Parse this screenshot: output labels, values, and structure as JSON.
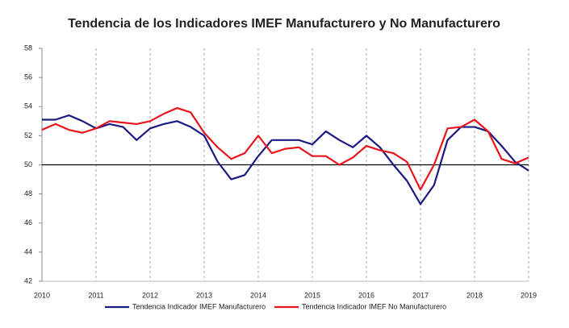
{
  "chart_data": {
    "type": "line",
    "title": "Tendencia de los Indicadores IMEF Manufacturero y No Manufacturero",
    "x": [
      2010,
      2010.25,
      2010.5,
      2010.75,
      2011,
      2011.25,
      2011.5,
      2011.75,
      2012,
      2012.25,
      2012.5,
      2012.75,
      2013,
      2013.25,
      2013.5,
      2013.75,
      2014,
      2014.25,
      2014.5,
      2014.75,
      2015,
      2015.25,
      2015.5,
      2015.75,
      2016,
      2016.25,
      2016.5,
      2016.75,
      2017,
      2017.25,
      2017.5,
      2017.75,
      2018,
      2018.25,
      2018.5,
      2018.75,
      2019
    ],
    "series": [
      {
        "name": "Tendencia Indicador IMEF Manufacturero",
        "color": "#1a1a80",
        "values": [
          53.1,
          53.1,
          53.4,
          53.0,
          52.5,
          52.8,
          52.6,
          51.7,
          52.5,
          52.8,
          53.0,
          52.6,
          52.0,
          50.2,
          49.0,
          49.3,
          50.6,
          51.7,
          51.7,
          51.7,
          51.4,
          52.3,
          51.7,
          51.2,
          52.0,
          51.2,
          50.0,
          48.9,
          47.3,
          48.6,
          51.7,
          52.6,
          52.6,
          52.3,
          51.3,
          50.2,
          49.6
        ]
      },
      {
        "name": "Tendencia Indicador IMEF No Manufacturero",
        "color": "#e8141b",
        "values": [
          52.4,
          52.8,
          52.4,
          52.2,
          52.5,
          53.0,
          52.9,
          52.8,
          53.0,
          53.5,
          53.9,
          53.6,
          52.2,
          51.2,
          50.4,
          50.8,
          52.0,
          50.8,
          51.1,
          51.2,
          50.6,
          50.6,
          50.0,
          50.5,
          51.3,
          51.0,
          50.8,
          50.2,
          48.3,
          50.0,
          52.5,
          52.6,
          53.1,
          52.3,
          50.4,
          50.1,
          50.5
        ]
      }
    ],
    "xlim": [
      2010,
      2019
    ],
    "xticks": [
      2010,
      2011,
      2012,
      2013,
      2014,
      2015,
      2016,
      2017,
      2018,
      2019
    ],
    "ylim": [
      42,
      58
    ],
    "yticks": [
      42,
      44,
      46,
      48,
      50,
      52,
      54,
      56,
      58
    ],
    "reference_line": 50,
    "grid": "x",
    "legend": "bottom"
  }
}
